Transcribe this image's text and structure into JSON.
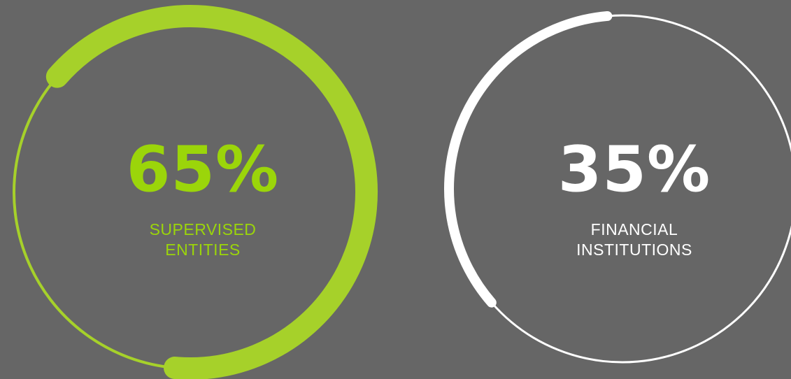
{
  "chart_data": [
    {
      "type": "pie",
      "value": 65,
      "value_label": "65%",
      "label_line1": "SUPERVISED",
      "label_line2": "ENTITIES",
      "color": "#A6D12A",
      "text_color": "#9BD50A"
    },
    {
      "type": "pie",
      "value": 35,
      "value_label": "35%",
      "label_line1": "FINANCIAL",
      "label_line2": "INSTITUTIONS",
      "color": "#FFFFFF",
      "text_color": "#FFFFFF"
    }
  ],
  "colors": {
    "background": "#666666"
  }
}
